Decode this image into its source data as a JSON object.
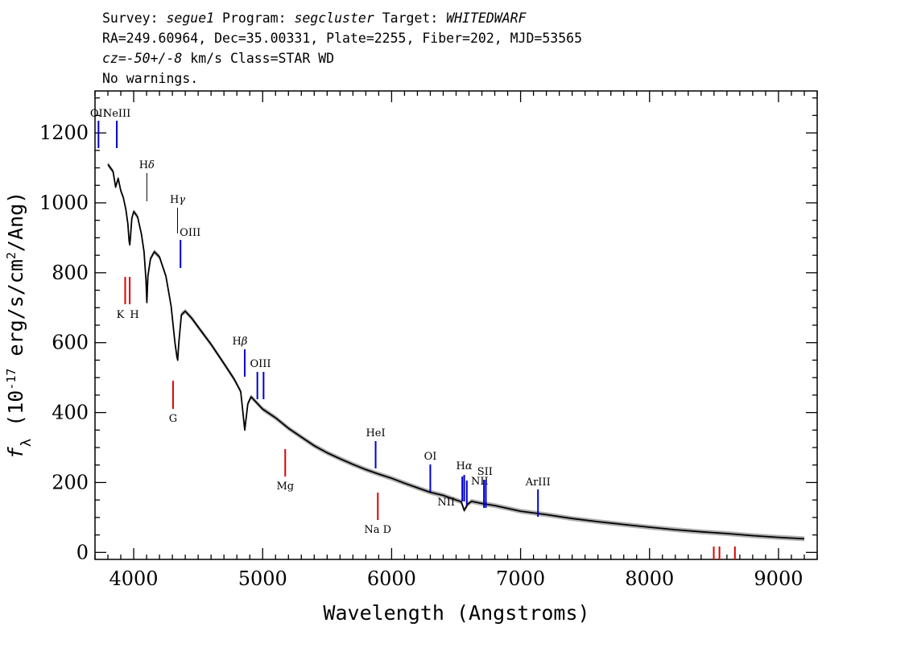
{
  "header": {
    "line1": [
      {
        "text": "Survey: ",
        "italic": false
      },
      {
        "text": "segue1",
        "italic": true
      },
      {
        "text": " Program: ",
        "italic": false
      },
      {
        "text": "segcluster",
        "italic": true
      },
      {
        "text": " Target: ",
        "italic": false
      },
      {
        "text": "WHITEDWARF",
        "italic": true
      }
    ],
    "line2": "RA=249.60964, Dec=35.00331, Plate=2255, Fiber=202, MJD=53565",
    "line3": [
      {
        "text": "cz=-50+/-8",
        "italic": true
      },
      {
        "text": " km/s Class=STAR WD",
        "italic": false
      }
    ],
    "line4": "No warnings."
  },
  "chart_data": {
    "type": "line",
    "title": "",
    "xlabel": "Wavelength (Angstroms)",
    "ylabel": "f_λ (10^-17 erg/s/cm^2/Ang)",
    "xlim": [
      3700,
      9300
    ],
    "ylim": [
      -20,
      1320
    ],
    "x_ticks": [
      4000,
      5000,
      6000,
      7000,
      8000,
      9000
    ],
    "y_ticks": [
      0,
      200,
      400,
      600,
      800,
      1000,
      1200
    ],
    "grid": false,
    "colors": {
      "spectrum": "#000000",
      "error_band": "#b0b0b0",
      "emission": "#0000cc",
      "absorption": "#dd0000",
      "balmer": "#000000"
    },
    "series": [
      {
        "x": [
          3800,
          3820,
          3840,
          3860,
          3880,
          3900,
          3920,
          3940,
          3955,
          3965,
          3970,
          3975,
          3985,
          4000,
          4030,
          4060,
          4080,
          4095,
          4102,
          4110,
          4130,
          4160,
          4200,
          4250,
          4290,
          4320,
          4335,
          4341,
          4350,
          4370,
          4400,
          4450,
          4500,
          4600,
          4700,
          4780,
          4830,
          4861,
          4885,
          4910,
          4950,
          5000,
          5100,
          5200,
          5300,
          5400,
          5500,
          5600,
          5700,
          5800,
          5900,
          6000,
          6100,
          6200,
          6300,
          6400,
          6500,
          6540,
          6563,
          6590,
          6620,
          6700,
          6800,
          7000,
          7200,
          7400,
          7600,
          7800,
          8000,
          8200,
          8400,
          8600,
          8800,
          9000,
          9200
        ],
        "y": [
          1110,
          1100,
          1090,
          1045,
          1070,
          1035,
          1015,
          980,
          940,
          890,
          880,
          900,
          955,
          975,
          960,
          910,
          860,
          780,
          715,
          790,
          840,
          860,
          845,
          790,
          705,
          600,
          560,
          550,
          600,
          680,
          690,
          670,
          645,
          595,
          540,
          495,
          460,
          350,
          425,
          445,
          430,
          410,
          385,
          355,
          330,
          305,
          285,
          268,
          252,
          237,
          224,
          212,
          198,
          185,
          172,
          163,
          150,
          145,
          120,
          138,
          146,
          140,
          134,
          118,
          108,
          97,
          88,
          80,
          72,
          65,
          59,
          54,
          48,
          43,
          39
        ]
      }
    ],
    "lines": [
      {
        "label": "OII",
        "wave": 3727,
        "color": "blue",
        "band": "top"
      },
      {
        "label": "NeIII",
        "wave": 3869,
        "color": "blue",
        "band": "top"
      },
      {
        "label": "Hδ",
        "wave": 4102,
        "color": "black",
        "band": "hd"
      },
      {
        "label": "Hγ",
        "wave": 4340,
        "color": "black",
        "band": "hg"
      },
      {
        "label": "OIII",
        "wave": 4363,
        "color": "blue",
        "band": "oiii1"
      },
      {
        "label": "K",
        "wave": 3934,
        "color": "red",
        "band": "kh"
      },
      {
        "label": "H",
        "wave": 3969,
        "color": "red",
        "band": "kh"
      },
      {
        "label": "G",
        "wave": 4305,
        "color": "red",
        "band": "g"
      },
      {
        "label": "Hβ",
        "wave": 4861,
        "color": "blue",
        "band": "hb"
      },
      {
        "label": "OIII",
        "wave": 4959,
        "color": "blue",
        "band": "oiii2"
      },
      {
        "label": "OIII",
        "wave": 5007,
        "color": "blue",
        "band": "oiii2"
      },
      {
        "label": "Mg",
        "wave": 5175,
        "color": "red",
        "band": "mg"
      },
      {
        "label": "HeI",
        "wave": 5876,
        "color": "blue",
        "band": "hei"
      },
      {
        "label": "Na D",
        "wave": 5893,
        "color": "red",
        "band": "nad"
      },
      {
        "label": "OI",
        "wave": 6300,
        "color": "blue",
        "band": "oi"
      },
      {
        "label": "NII",
        "wave": 6548,
        "color": "blue",
        "band": "nii1"
      },
      {
        "label": "Hα",
        "wave": 6563,
        "color": "blue",
        "band": "ha"
      },
      {
        "label": "NII",
        "wave": 6583,
        "color": "blue",
        "band": "nii2"
      },
      {
        "label": "SII",
        "wave": 6716,
        "color": "blue",
        "band": "sii"
      },
      {
        "label": "SII",
        "wave": 6731,
        "color": "blue",
        "band": "sii"
      },
      {
        "label": "ArIII",
        "wave": 7135,
        "color": "blue",
        "band": "ariii"
      },
      {
        "label": "",
        "wave": 8498,
        "color": "red",
        "band": "ca"
      },
      {
        "label": "",
        "wave": 8542,
        "color": "red",
        "band": "ca"
      },
      {
        "label": "",
        "wave": 8662,
        "color": "red",
        "band": "ca"
      }
    ]
  }
}
